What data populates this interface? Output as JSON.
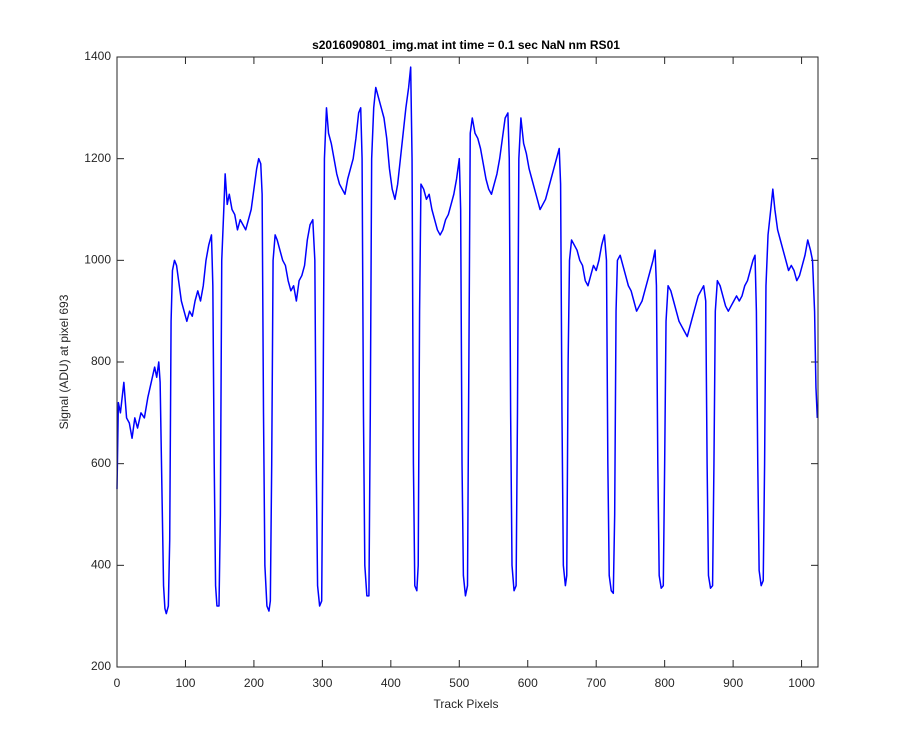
{
  "chart_data": {
    "type": "line",
    "title": "s2016090801_img.mat int time = 0.1 sec  NaN nm RS01",
    "x_label": "Track Pixels",
    "y_label": "Signal (ADU) at pixel 693",
    "xlim": [
      0,
      1024
    ],
    "ylim": [
      200,
      1400
    ],
    "xticks": [
      0,
      100,
      200,
      300,
      400,
      500,
      600,
      700,
      800,
      900,
      1000
    ],
    "yticks": [
      200,
      400,
      600,
      800,
      1000,
      1200,
      1400
    ],
    "grid": false,
    "series": [
      {
        "name": "signal",
        "color": "#0000ff",
        "x": [
          0,
          2,
          5,
          10,
          14,
          18,
          22,
          26,
          30,
          35,
          40,
          45,
          50,
          55,
          58,
          61,
          63,
          66,
          68,
          70,
          72,
          75,
          77,
          79,
          81,
          84,
          87,
          90,
          94,
          98,
          102,
          106,
          110,
          114,
          118,
          122,
          126,
          130,
          134,
          138,
          140,
          142,
          144,
          146,
          149,
          151,
          153,
          156,
          158,
          161,
          164,
          168,
          172,
          176,
          180,
          184,
          188,
          192,
          196,
          200,
          204,
          207,
          210,
          212,
          214,
          216,
          219,
          222,
          224,
          226,
          228,
          231,
          234,
          238,
          242,
          246,
          250,
          254,
          258,
          262,
          266,
          270,
          274,
          278,
          282,
          286,
          289,
          291,
          293,
          296,
          299,
          301,
          303,
          306,
          309,
          313,
          317,
          321,
          325,
          329,
          333,
          337,
          341,
          345,
          349,
          353,
          356,
          358,
          360,
          362,
          365,
          368,
          370,
          372,
          375,
          378,
          382,
          386,
          390,
          394,
          398,
          402,
          406,
          410,
          414,
          418,
          422,
          426,
          429,
          431,
          433,
          435,
          438,
          440,
          442,
          444,
          448,
          452,
          456,
          460,
          464,
          468,
          472,
          476,
          480,
          484,
          488,
          492,
          496,
          500,
          502,
          504,
          506,
          509,
          512,
          514,
          516,
          519,
          523,
          527,
          531,
          535,
          539,
          543,
          547,
          551,
          555,
          559,
          563,
          567,
          571,
          573,
          575,
          577,
          580,
          583,
          585,
          587,
          590,
          594,
          598,
          602,
          606,
          610,
          614,
          618,
          622,
          626,
          630,
          634,
          638,
          642,
          646,
          648,
          650,
          652,
          655,
          657,
          659,
          661,
          664,
          668,
          672,
          676,
          680,
          684,
          688,
          692,
          696,
          700,
          704,
          708,
          712,
          715,
          717,
          719,
          722,
          725,
          727,
          729,
          731,
          735,
          739,
          743,
          747,
          751,
          755,
          759,
          763,
          767,
          771,
          775,
          779,
          783,
          786,
          788,
          790,
          792,
          795,
          798,
          800,
          802,
          805,
          809,
          813,
          817,
          821,
          825,
          829,
          833,
          837,
          841,
          845,
          849,
          853,
          857,
          860,
          862,
          864,
          867,
          870,
          872,
          874,
          877,
          881,
          885,
          889,
          893,
          897,
          901,
          905,
          909,
          913,
          917,
          921,
          925,
          929,
          932,
          934,
          936,
          938,
          941,
          944,
          946,
          948,
          951,
          955,
          958,
          961,
          965,
          969,
          973,
          977,
          981,
          985,
          989,
          993,
          997,
          1001,
          1005,
          1009,
          1013,
          1016,
          1019,
          1021,
          1023
        ],
        "values": [
          550,
          720,
          700,
          760,
          690,
          680,
          650,
          690,
          670,
          700,
          690,
          730,
          760,
          790,
          770,
          800,
          760,
          520,
          360,
          315,
          305,
          320,
          450,
          880,
          980,
          1000,
          990,
          960,
          920,
          900,
          880,
          900,
          890,
          920,
          940,
          920,
          950,
          1000,
          1030,
          1050,
          950,
          600,
          360,
          320,
          320,
          500,
          1000,
          1100,
          1170,
          1110,
          1130,
          1100,
          1090,
          1060,
          1080,
          1070,
          1060,
          1080,
          1100,
          1140,
          1180,
          1200,
          1190,
          1130,
          700,
          400,
          320,
          310,
          330,
          600,
          1000,
          1050,
          1040,
          1020,
          1000,
          990,
          960,
          940,
          950,
          920,
          960,
          970,
          990,
          1040,
          1070,
          1080,
          1000,
          600,
          360,
          320,
          330,
          700,
          1200,
          1300,
          1250,
          1230,
          1200,
          1170,
          1150,
          1140,
          1130,
          1160,
          1180,
          1200,
          1240,
          1290,
          1300,
          1200,
          700,
          400,
          340,
          340,
          700,
          1200,
          1300,
          1340,
          1320,
          1300,
          1280,
          1240,
          1180,
          1140,
          1120,
          1150,
          1200,
          1250,
          1300,
          1340,
          1380,
          1200,
          600,
          360,
          350,
          400,
          900,
          1150,
          1140,
          1120,
          1130,
          1100,
          1080,
          1060,
          1050,
          1060,
          1080,
          1090,
          1110,
          1130,
          1160,
          1200,
          1100,
          600,
          380,
          340,
          360,
          800,
          1250,
          1280,
          1250,
          1240,
          1220,
          1190,
          1160,
          1140,
          1130,
          1150,
          1170,
          1200,
          1240,
          1280,
          1290,
          1200,
          700,
          400,
          350,
          360,
          700,
          1200,
          1280,
          1230,
          1210,
          1180,
          1160,
          1140,
          1120,
          1100,
          1110,
          1120,
          1140,
          1160,
          1180,
          1200,
          1220,
          1150,
          700,
          400,
          360,
          380,
          800,
          1000,
          1040,
          1030,
          1020,
          1000,
          990,
          960,
          950,
          970,
          990,
          980,
          1000,
          1030,
          1050,
          1000,
          600,
          380,
          350,
          345,
          500,
          900,
          1000,
          1010,
          990,
          970,
          950,
          940,
          920,
          900,
          910,
          920,
          940,
          960,
          980,
          1000,
          1020,
          950,
          600,
          380,
          355,
          360,
          600,
          880,
          950,
          940,
          920,
          900,
          880,
          870,
          860,
          850,
          870,
          890,
          910,
          930,
          940,
          950,
          920,
          600,
          380,
          355,
          360,
          600,
          900,
          960,
          950,
          930,
          910,
          900,
          910,
          920,
          930,
          920,
          930,
          950,
          960,
          980,
          1000,
          1010,
          900,
          600,
          390,
          360,
          370,
          600,
          950,
          1050,
          1100,
          1140,
          1100,
          1060,
          1040,
          1020,
          1000,
          980,
          990,
          980,
          960,
          970,
          990,
          1010,
          1040,
          1020,
          1000,
          900,
          750,
          690
        ]
      }
    ]
  }
}
